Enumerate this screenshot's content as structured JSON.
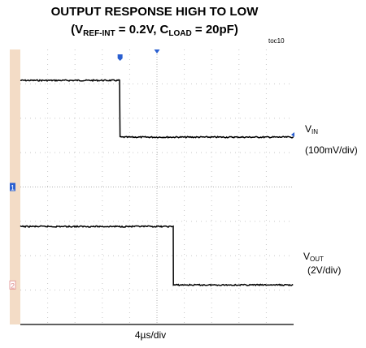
{
  "title_line1": "OUTPUT RESPONSE HIGH TO LOW",
  "title_line2": {
    "open": "(V",
    "sub1": "REF-INT",
    "mid": " = 0.2V, C",
    "sub2": "LOAD",
    "close": " = 20pF)"
  },
  "figure_tag": "toc10",
  "x_label": "4µs/div",
  "channel1": {
    "name_main": "V",
    "name_sub": "IN",
    "scale": "(100mV/div)"
  },
  "channel2": {
    "name_main": "V",
    "name_sub": "OUT",
    "scale": "(2V/div)"
  },
  "marker_labels": [
    "1",
    "2"
  ],
  "colors": {
    "trace": "#000000",
    "grid": "#c8c8c8",
    "left_bar": "#f3dcc6",
    "marker": "#2a5fd0",
    "marker2": "#e08a8a"
  },
  "chart_data": {
    "type": "line",
    "title": "OUTPUT RESPONSE HIGH TO LOW",
    "xlabel": "4µs/div",
    "x_divisions": 10,
    "y_divisions": 8,
    "grid": true,
    "series": [
      {
        "name": "V_IN (100mV/div)",
        "unit": "div",
        "x": [
          0,
          3.65,
          3.65,
          10
        ],
        "values": [
          7.1,
          7.1,
          5.45,
          5.45
        ]
      },
      {
        "name": "V_OUT (2V/div)",
        "unit": "div",
        "x": [
          0,
          5.6,
          5.6,
          10
        ],
        "values": [
          2.85,
          2.85,
          1.15,
          1.15
        ]
      }
    ]
  }
}
